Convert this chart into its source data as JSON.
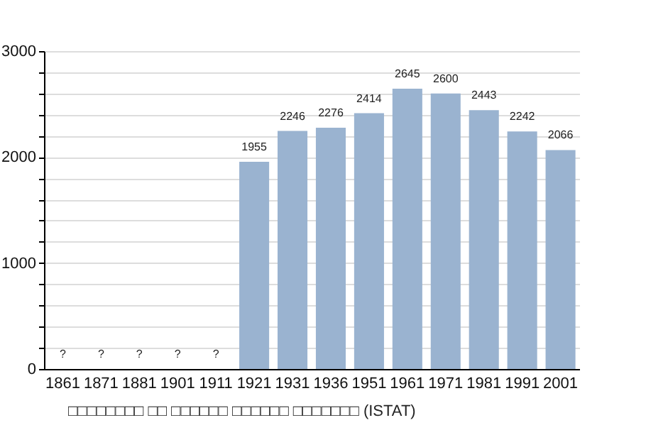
{
  "chart_data": {
    "type": "bar",
    "categories": [
      "1861",
      "1871",
      "1881",
      "1901",
      "1911",
      "1921",
      "1931",
      "1936",
      "1951",
      "1961",
      "1971",
      "1981",
      "1991",
      "2001"
    ],
    "values": [
      null,
      null,
      null,
      null,
      null,
      1955,
      2246,
      2276,
      2414,
      2645,
      2600,
      2443,
      2242,
      2066
    ],
    "value_labels": [
      "?",
      "?",
      "?",
      "?",
      "?",
      "1955",
      "2246",
      "2276",
      "2414",
      "2645",
      "2600",
      "2443",
      "2242",
      "2066"
    ],
    "color": "#9ab3d0",
    "ylim": [
      0,
      3000
    ],
    "yticks": [
      0,
      {
        "value": 200,
        "label": null
      },
      {
        "value": 400,
        "label": null
      },
      {
        "value": 600,
        "label": null
      },
      {
        "value": 800,
        "label": null
      },
      1000,
      {
        "value": 1200,
        "label": null
      },
      {
        "value": 1400,
        "label": null
      },
      {
        "value": 1600,
        "label": null
      },
      {
        "value": 1800,
        "label": null
      },
      2000,
      {
        "value": 2200,
        "label": null
      },
      {
        "value": 2400,
        "label": null
      },
      {
        "value": 2600,
        "label": null
      },
      {
        "value": 2800,
        "label": null
      },
      3000
    ],
    "grid": "y",
    "annotations": [
      "□□□□□□□□ □□ □□□□□□ □□□□□□ □□□□□□□ (ISTAT)"
    ]
  }
}
